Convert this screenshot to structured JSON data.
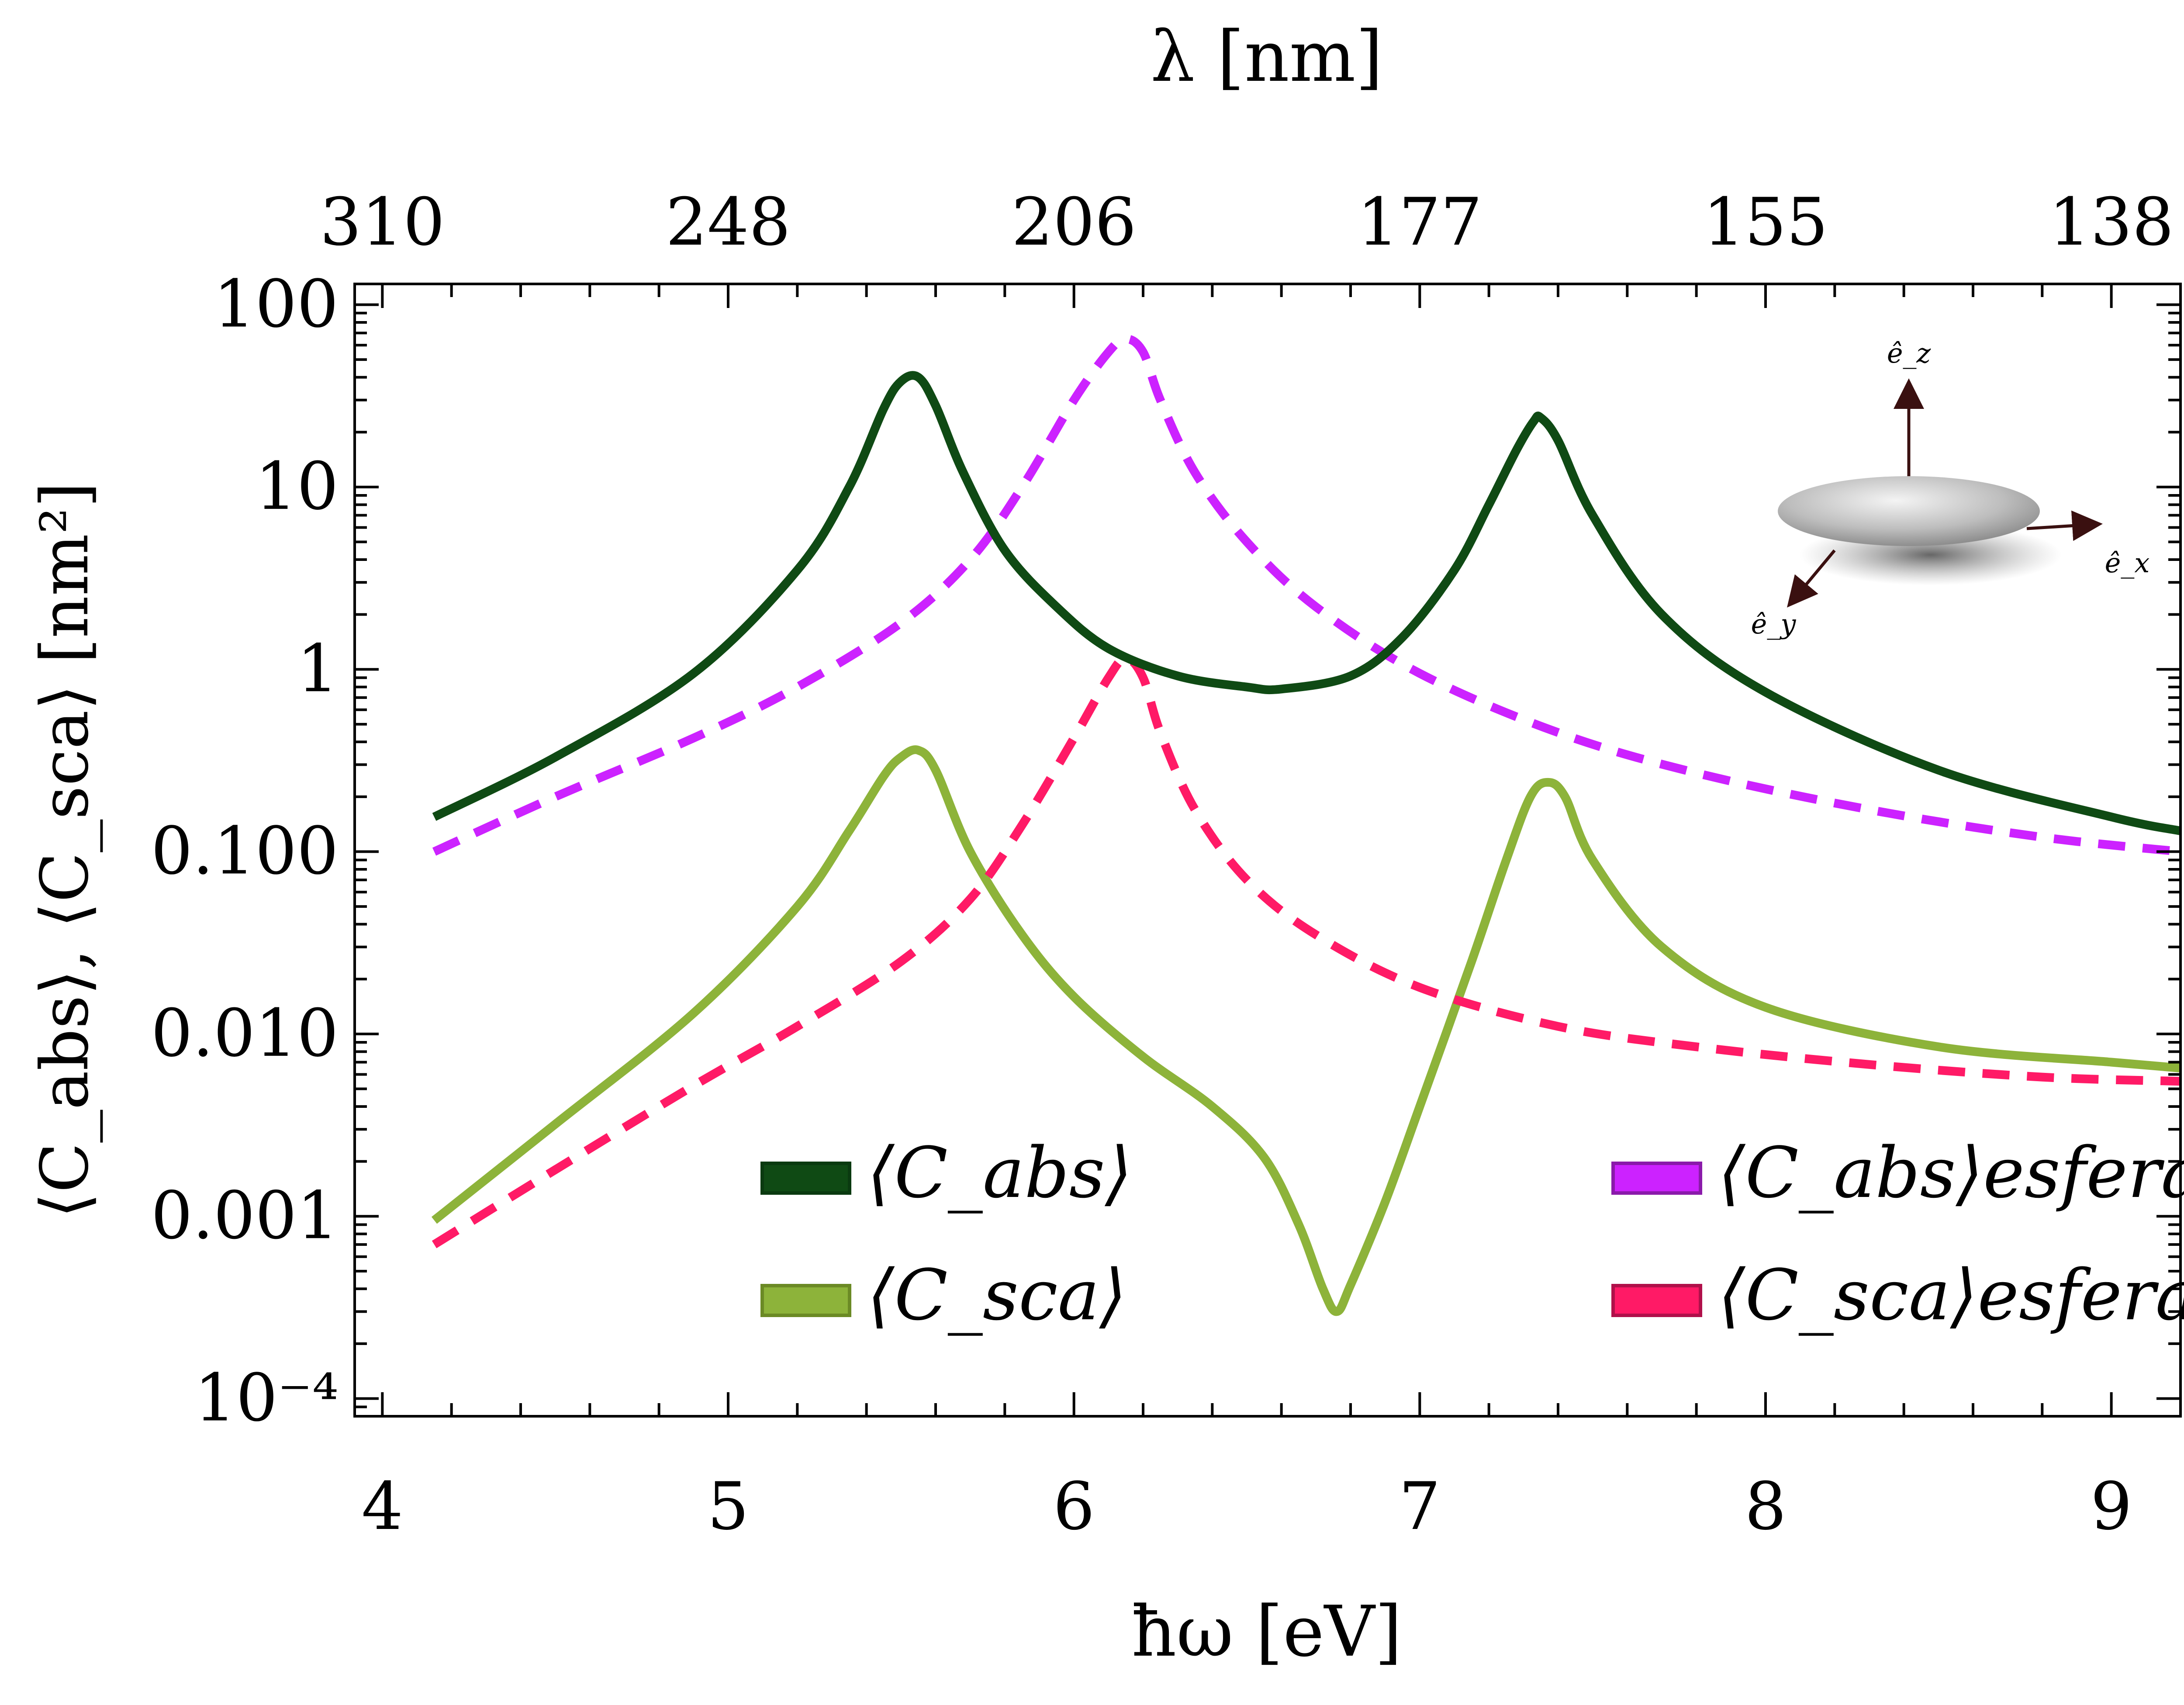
{
  "chart_data": {
    "type": "line",
    "title": "",
    "xlabel": "ħω [eV]",
    "ylabel": "⟨C_abs⟩, ⟨C_sca⟩ [nm²]",
    "top_xlabel": "λ [nm]",
    "xlim": [
      3.92,
      9.2
    ],
    "ylim": [
      8e-05,
      130
    ],
    "yscale": "log",
    "grid": false,
    "legend_position": "bottom",
    "x_ticks": [
      "4",
      "5",
      "6",
      "7",
      "8",
      "9"
    ],
    "x_tick_values": [
      4,
      5,
      6,
      7,
      8,
      9
    ],
    "y_ticks": [
      "10⁻⁴",
      "0.001",
      "0.010",
      "0.100",
      "1",
      "10",
      "100"
    ],
    "y_tick_values": [
      0.0001,
      0.001,
      0.01,
      0.1,
      1,
      10,
      100
    ],
    "top_ticks": [
      "310",
      "248",
      "206",
      "177",
      "155",
      "138"
    ],
    "top_tick_energies": [
      4,
      5,
      6,
      7,
      8,
      9
    ],
    "inset_labels": [
      "ê_z",
      "ê_x",
      "ê_y"
    ],
    "series": [
      {
        "name": "⟨C_abs⟩",
        "color": "#0f4a14",
        "dash": false,
        "x": [
          4.15,
          4.5,
          4.9,
          5.2,
          5.35,
          5.45,
          5.5,
          5.55,
          5.6,
          5.68,
          5.8,
          5.95,
          6.1,
          6.3,
          6.5,
          6.6,
          6.8,
          6.95,
          7.1,
          7.2,
          7.28,
          7.33,
          7.35,
          7.4,
          7.5,
          7.7,
          8.0,
          8.5,
          9.0,
          9.2
        ],
        "y": [
          0.155,
          0.33,
          0.95,
          3.5,
          10,
          27,
          38,
          40,
          28,
          12,
          4.5,
          2.2,
          1.3,
          0.92,
          0.8,
          0.78,
          0.92,
          1.5,
          3.5,
          8,
          16,
          23,
          24,
          18,
          7,
          2,
          0.75,
          0.28,
          0.155,
          0.13
        ]
      },
      {
        "name": "⟨C_sca⟩",
        "color": "#8db33a",
        "dash": false,
        "x": [
          4.15,
          4.5,
          4.9,
          5.2,
          5.35,
          5.45,
          5.5,
          5.55,
          5.6,
          5.7,
          5.85,
          6.0,
          6.2,
          6.4,
          6.55,
          6.65,
          6.72,
          6.76,
          6.8,
          6.9,
          7.0,
          7.15,
          7.25,
          7.32,
          7.37,
          7.42,
          7.5,
          7.7,
          8.0,
          8.5,
          9.0,
          9.2
        ],
        "y": [
          0.00095,
          0.0032,
          0.013,
          0.05,
          0.13,
          0.26,
          0.33,
          0.36,
          0.28,
          0.1,
          0.035,
          0.016,
          0.0075,
          0.004,
          0.0021,
          0.0009,
          0.0004,
          0.0003,
          0.00042,
          0.0012,
          0.004,
          0.025,
          0.09,
          0.2,
          0.24,
          0.2,
          0.09,
          0.03,
          0.014,
          0.0085,
          0.007,
          0.0065
        ]
      },
      {
        "name": "⟨C_abs⟩esfera",
        "color": "#cc22ff",
        "dash": true,
        "x": [
          4.15,
          4.5,
          4.9,
          5.2,
          5.5,
          5.7,
          5.85,
          6.0,
          6.1,
          6.15,
          6.2,
          6.25,
          6.35,
          6.5,
          6.7,
          7.0,
          7.4,
          7.8,
          8.3,
          8.8,
          9.2
        ],
        "y": [
          0.1,
          0.2,
          0.42,
          0.8,
          1.8,
          4.0,
          10,
          30,
          55,
          65,
          55,
          30,
          12,
          5,
          2.2,
          0.95,
          0.45,
          0.27,
          0.17,
          0.12,
          0.1
        ]
      },
      {
        "name": "⟨C_sca⟩esfera",
        "color": "#ff1a66",
        "dash": true,
        "x": [
          4.15,
          4.5,
          4.9,
          5.2,
          5.5,
          5.7,
          5.85,
          6.0,
          6.1,
          6.15,
          6.2,
          6.25,
          6.35,
          6.5,
          6.7,
          7.0,
          7.4,
          7.8,
          8.3,
          8.8,
          9.2
        ],
        "y": [
          0.0007,
          0.0018,
          0.0052,
          0.011,
          0.025,
          0.055,
          0.14,
          0.42,
          0.9,
          1.15,
          0.9,
          0.45,
          0.17,
          0.07,
          0.035,
          0.018,
          0.011,
          0.0085,
          0.0068,
          0.0058,
          0.0055
        ]
      }
    ]
  }
}
